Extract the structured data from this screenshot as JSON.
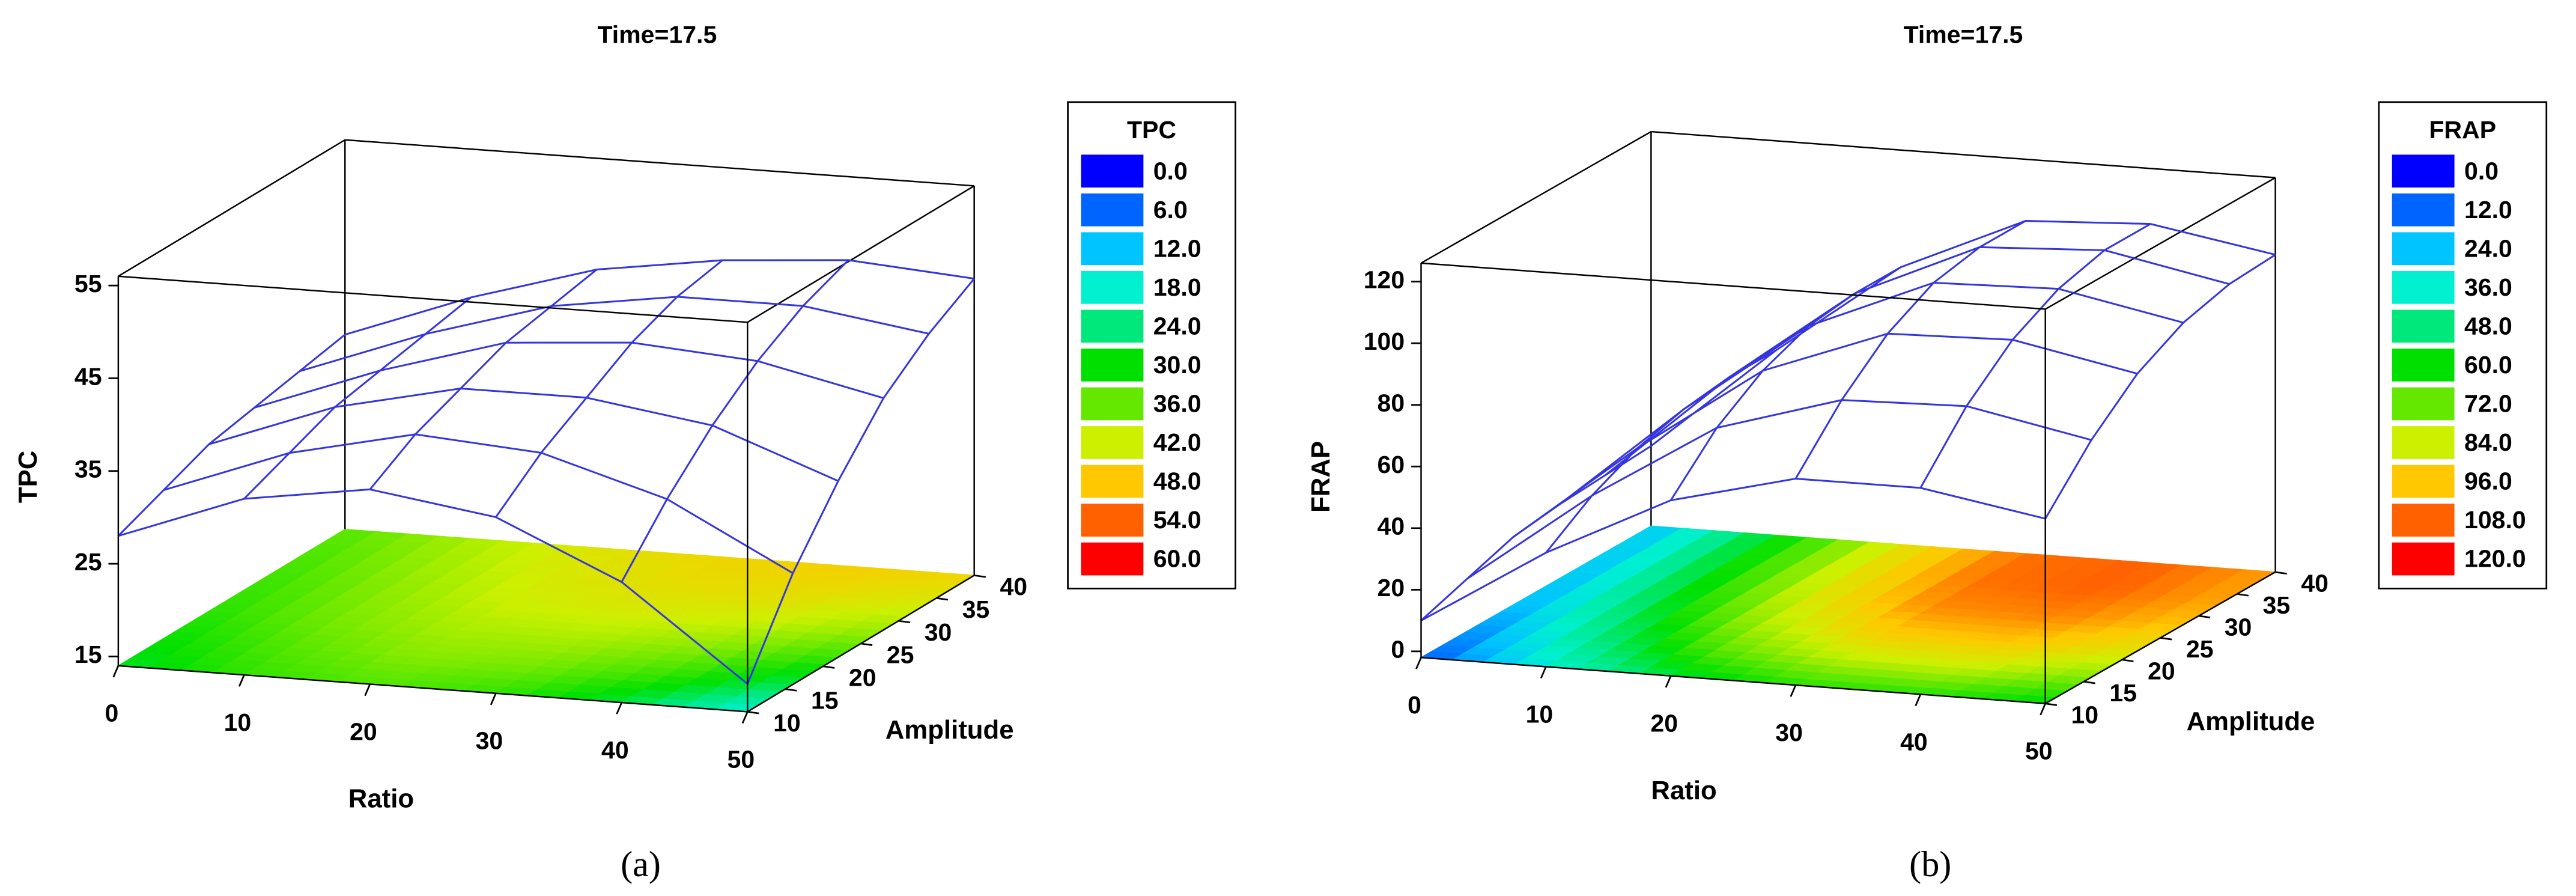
{
  "chart_data": [
    {
      "type": "surface",
      "title": "Time=17.5",
      "panel_label": "(a)",
      "x_label": "Ratio",
      "y_label": "Amplitude",
      "z_label": "TPC",
      "x": [
        0,
        10,
        20,
        30,
        40,
        50
      ],
      "y": [
        10,
        16,
        22,
        28,
        34,
        40
      ],
      "z": [
        [
          28,
          33,
          35,
          33,
          27,
          17
        ],
        [
          30,
          35,
          38,
          37,
          33,
          26
        ],
        [
          32,
          37,
          40,
          40,
          38,
          33
        ],
        [
          33,
          38,
          42,
          43,
          42,
          39
        ],
        [
          34,
          39,
          43,
          45,
          45,
          43
        ],
        [
          35,
          40,
          44,
          46,
          47,
          46
        ]
      ],
      "xlim": [
        0,
        50
      ],
      "xticks": [
        0,
        10,
        20,
        30,
        40,
        50
      ],
      "ylim": [
        10,
        40
      ],
      "yticks": [
        10,
        15,
        20,
        25,
        30,
        35,
        40
      ],
      "zlim": [
        14,
        56
      ],
      "zticks": [
        15,
        25,
        35,
        45,
        55
      ],
      "mesh_color": "#3535e0",
      "legend": {
        "title": "TPC",
        "levels": [
          {
            "value": 0,
            "label": "0.0"
          },
          {
            "value": 6,
            "label": "6.0"
          },
          {
            "value": 12,
            "label": "12.0"
          },
          {
            "value": 18,
            "label": "18.0"
          },
          {
            "value": 24,
            "label": "24.0"
          },
          {
            "value": 30,
            "label": "30.0"
          },
          {
            "value": 36,
            "label": "36.0"
          },
          {
            "value": 42,
            "label": "42.0"
          },
          {
            "value": 48,
            "label": "48.0"
          },
          {
            "value": 54,
            "label": "54.0"
          },
          {
            "value": 60,
            "label": "60.0"
          }
        ],
        "colors": [
          "#0000ff",
          "#0064ff",
          "#00c4ff",
          "#00f0d0",
          "#00e87c",
          "#00e000",
          "#64e800",
          "#ccf000",
          "#ffc800",
          "#ff6000",
          "#ff0000"
        ]
      }
    },
    {
      "type": "surface",
      "title": "Time=17.5",
      "panel_label": "(b)",
      "x_label": "Ratio",
      "y_label": "Amplitude",
      "z_label": "FRAP",
      "x": [
        0,
        10,
        20,
        30,
        40,
        50
      ],
      "y": [
        10,
        16,
        22,
        28,
        34,
        40
      ],
      "z": [
        [
          10,
          35,
          55,
          65,
          65,
          58
        ],
        [
          15,
          45,
          70,
          82,
          83,
          75
        ],
        [
          20,
          52,
          80,
          95,
          96,
          88
        ],
        [
          22,
          56,
          86,
          103,
          104,
          96
        ],
        [
          23,
          58,
          88,
          106,
          108,
          100
        ],
        [
          24,
          58,
          88,
          106,
          108,
          101
        ]
      ],
      "xlim": [
        0,
        50
      ],
      "xticks": [
        0,
        10,
        20,
        30,
        40,
        50
      ],
      "ylim": [
        10,
        40
      ],
      "yticks": [
        10,
        15,
        20,
        25,
        30,
        35,
        40
      ],
      "zlim": [
        -2,
        126
      ],
      "zticks": [
        0,
        20,
        40,
        60,
        80,
        100,
        120
      ],
      "mesh_color": "#3535e0",
      "legend": {
        "title": "FRAP",
        "levels": [
          {
            "value": 0,
            "label": "0.0"
          },
          {
            "value": 12,
            "label": "12.0"
          },
          {
            "value": 24,
            "label": "24.0"
          },
          {
            "value": 36,
            "label": "36.0"
          },
          {
            "value": 48,
            "label": "48.0"
          },
          {
            "value": 60,
            "label": "60.0"
          },
          {
            "value": 72,
            "label": "72.0"
          },
          {
            "value": 84,
            "label": "84.0"
          },
          {
            "value": 96,
            "label": "96.0"
          },
          {
            "value": 108,
            "label": "108.0"
          },
          {
            "value": 120,
            "label": "120.0"
          }
        ],
        "colors": [
          "#0000ff",
          "#0064ff",
          "#00c4ff",
          "#00f0d0",
          "#00e87c",
          "#00e000",
          "#64e800",
          "#ccf000",
          "#ffc800",
          "#ff6000",
          "#ff0000"
        ]
      }
    }
  ]
}
